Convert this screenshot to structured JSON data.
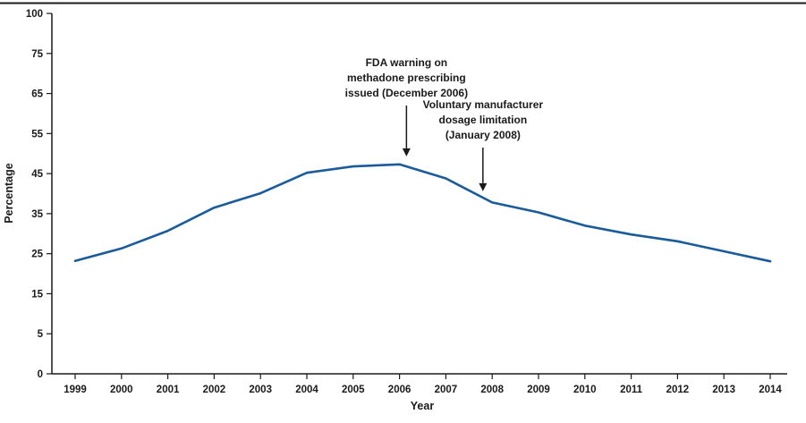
{
  "figure": {
    "ylabel": "Percentage",
    "xlabel": "Year"
  },
  "chart_data": {
    "type": "line",
    "title": "",
    "xlabel": "Year",
    "ylabel": "Percentage",
    "x": [
      1999,
      2000,
      2001,
      2002,
      2003,
      2004,
      2005,
      2006,
      2007,
      2008,
      2009,
      2010,
      2011,
      2012,
      2013,
      2014
    ],
    "series": [
      {
        "name": "Percentage",
        "color": "#1a5b9b",
        "values": [
          23.2,
          26.3,
          30.7,
          36.5,
          40.1,
          45.2,
          46.8,
          47.3,
          43.8,
          37.8,
          35.3,
          32.0,
          29.8,
          28.1,
          25.6,
          23.1
        ]
      }
    ],
    "y_ticks": [
      0,
      5,
      15,
      25,
      35,
      45,
      55,
      65,
      75,
      100
    ],
    "grid": false,
    "legend": "none",
    "annotations": [
      {
        "lines": [
          "FDA warning on",
          "methadone prescribing",
          "issued (December 2006)"
        ],
        "x": 2006.15,
        "tip_value": 49.3,
        "start_value": 62.0
      },
      {
        "lines": [
          "Voluntary manufacturer",
          "dosage limitation",
          "(January 2008)"
        ],
        "x": 2007.8,
        "tip_value": 40.6,
        "start_value": 51.5
      }
    ]
  }
}
